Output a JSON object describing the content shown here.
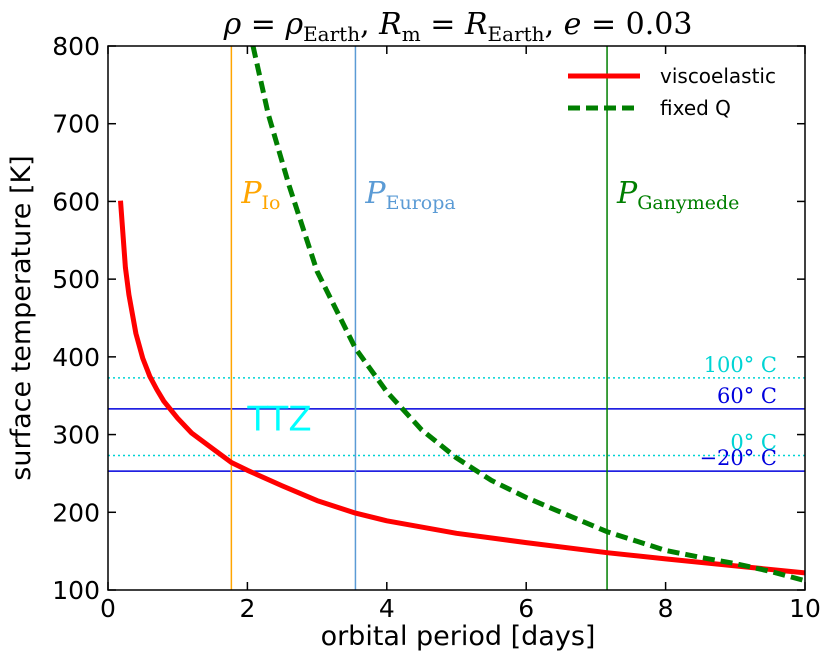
{
  "chart_data": {
    "type": "line",
    "title": {
      "rho": "ρ",
      "eq1": " = ",
      "rho_sub_lhs": "ρ",
      "earth": "Earth",
      "comma1": ", ",
      "R": "R",
      "m": "m",
      "eq2": " = ",
      "R2": "R",
      "earth2": "Earth",
      "comma2": ", ",
      "e": "e",
      "eq3": " = ",
      "value": "0.03"
    },
    "xlabel": "orbital period [days]",
    "ylabel": "surface temperature [K]",
    "xlim": [
      0,
      10
    ],
    "ylim": [
      100,
      800
    ],
    "xticks": [
      0,
      2,
      4,
      6,
      8,
      10
    ],
    "yticks": [
      100,
      200,
      300,
      400,
      500,
      600,
      700,
      800
    ],
    "legend_position": "top-right",
    "series": [
      {
        "name": "viscoelastic",
        "color": "#ff0000",
        "style": "solid",
        "x": [
          0.18,
          0.25,
          0.3,
          0.4,
          0.5,
          0.6,
          0.7,
          0.8,
          1.0,
          1.2,
          1.5,
          1.77,
          2.0,
          2.5,
          3.0,
          3.55,
          4.0,
          5.0,
          6.0,
          7.16,
          8.0,
          9.0,
          10.0
        ],
        "y": [
          601,
          515,
          480,
          430,
          398,
          375,
          358,
          343,
          321,
          302,
          282,
          264,
          254,
          234,
          215,
          199,
          189,
          173,
          161,
          148,
          140,
          131,
          122
        ]
      },
      {
        "name": "fixed Q",
        "color": "#007f00",
        "style": "dashed",
        "x": [
          2.08,
          2.3,
          2.6,
          3.0,
          3.55,
          4.0,
          4.5,
          5.0,
          5.5,
          6.0,
          6.5,
          7.16,
          8.0,
          8.5,
          9.0,
          9.5,
          10.0
        ],
        "y": [
          800,
          712,
          620,
          510,
          411,
          355,
          306,
          270,
          241,
          219,
          200,
          175,
          151,
          142,
          134,
          124,
          112
        ]
      }
    ],
    "hlines": [
      {
        "y": 373,
        "color": "#00d4d4",
        "style": "dotted",
        "label": "100° C"
      },
      {
        "y": 333,
        "color": "#0000dd",
        "style": "solid",
        "label": "60° C"
      },
      {
        "y": 273,
        "color": "#00d4d4",
        "style": "dotted",
        "label": "0° C"
      },
      {
        "y": 253,
        "color": "#0000dd",
        "style": "solid",
        "label": "−20° C"
      }
    ],
    "vlines": [
      {
        "x": 1.77,
        "color": "#ffa500",
        "label": "P",
        "sub": "Io"
      },
      {
        "x": 3.55,
        "color": "#5b9bd5",
        "label": "P",
        "sub": "Europa"
      },
      {
        "x": 7.16,
        "color": "#007f00",
        "label": "P",
        "sub": "Ganymede"
      }
    ],
    "annotation": {
      "text": "TTZ",
      "color": "#00ffff"
    }
  }
}
